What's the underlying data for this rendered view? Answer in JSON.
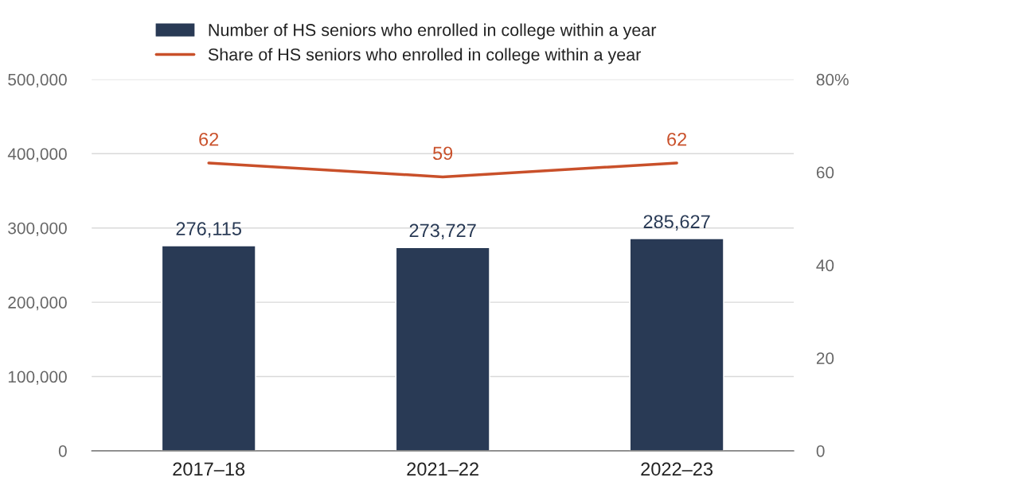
{
  "chart_data": {
    "type": "bar",
    "categories": [
      "2017–18",
      "2021–22",
      "2022–23"
    ],
    "series": [
      {
        "name": "Number of HS seniors who enrolled in college within a year",
        "color": "#293a55",
        "values": [
          276115,
          273727,
          285627
        ],
        "value_labels": [
          "276,115",
          "273,727",
          "285,627"
        ]
      },
      {
        "name": "Share of HS seniors who enrolled in college within a year",
        "type": "line",
        "axis": "y2",
        "color": "#c9502a",
        "values": [
          62,
          59,
          62
        ],
        "value_labels": [
          "62",
          "59",
          "62"
        ],
        "marker": "none",
        "line_style": "solid"
      }
    ],
    "ylim": [
      0,
      500000
    ],
    "yticks": [
      {
        "value": 0,
        "label": "0"
      },
      {
        "value": 100000,
        "label": "100,000"
      },
      {
        "value": 200000,
        "label": "200,000"
      },
      {
        "value": 300000,
        "label": "300,000"
      },
      {
        "value": 400000,
        "label": "400,000"
      },
      {
        "value": 500000,
        "label": "500,000"
      }
    ],
    "y2lim": [
      0,
      80
    ],
    "y2ticks": [
      0,
      20,
      40,
      60,
      {
        "value": 80,
        "label": "80%"
      }
    ],
    "grid": "y",
    "legend": "top"
  }
}
